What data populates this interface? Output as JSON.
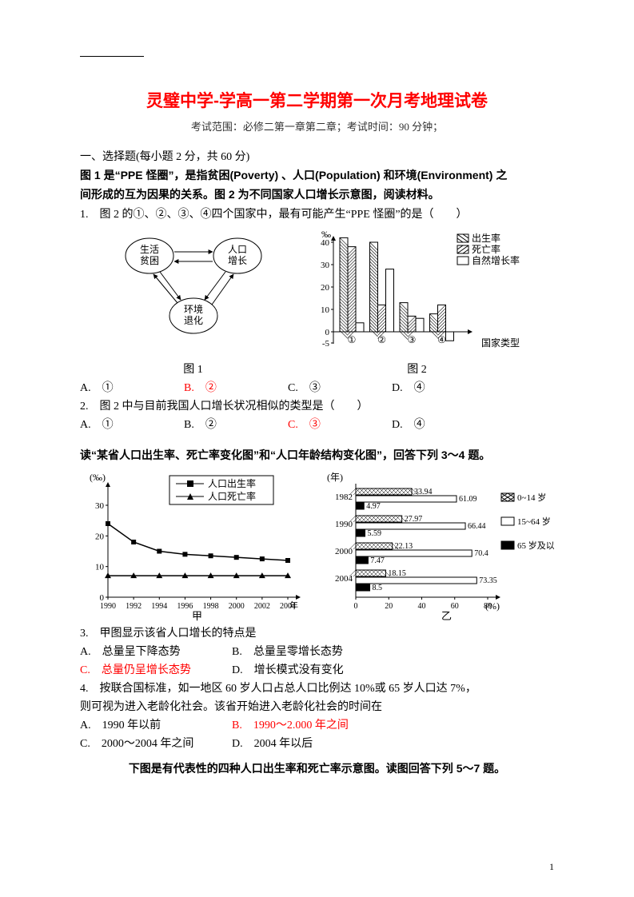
{
  "title": "灵璧中学-学高一第二学期第一次月考地理试卷",
  "subtitle": "考试范围：必修二第一章第二章；考试时间：90 分钟；",
  "section_header": "一、选择题(每小题 2 分，共 60 分)",
  "intro_line1": "图 1 是“PPE 怪圈”，是指贫困(Poverty) 、人口(Population) 和环境(Environment) 之",
  "intro_line2": "间形成的互为因果的关系。图 2 为不同国家人口增长示意图，阅读材料。",
  "q1_text": "1.　图 2 的①、②、③、④四个国家中，最有可能产生“PPE 怪圈”的是（　　）",
  "fig1_caption": "图 1",
  "fig2_caption": "图 2",
  "fig1": {
    "node1": "生活\n贫困",
    "node2": "人口\n增长",
    "node3": "环境\n退化"
  },
  "fig2": {
    "ylabel": "‰",
    "ymax": 45,
    "ymin": -5,
    "ticks": [
      40,
      30,
      20,
      10,
      0,
      -5
    ],
    "ytick_step": 10,
    "categories": [
      "①",
      "②",
      "③",
      "④"
    ],
    "xlabel": "国家类型",
    "legend": [
      "出生率",
      "死亡率",
      "自然增长率"
    ],
    "birth": [
      42,
      40,
      13,
      8
    ],
    "death": [
      38,
      12,
      7,
      12
    ],
    "natural": [
      4,
      28,
      6,
      -4
    ],
    "colors": {
      "birth_fill": "#ffffff",
      "birth_hatch": "#000000",
      "death_fill": "#ffffff",
      "death_hatch": "#000000",
      "natural_fill": "#ffffff"
    },
    "bar_width": 0.25,
    "background_color": "#ffffff",
    "axis_color": "#000000"
  },
  "q1_opts": {
    "A": "A.　①",
    "B": "B.　②",
    "C": "C.　③",
    "D": "D.　④",
    "answer": "B"
  },
  "q2_text": "2.　图 2 中与目前我国人口增长状况相似的类型是（　　）",
  "q2_opts": {
    "A": "A.　①",
    "B": "B.　②",
    "C": "C.　③",
    "D": "D.　④",
    "answer": "C"
  },
  "read_intro": "读“某省人口出生率、死亡率变化图”和“人口年龄结构变化图”，回答下列 3～4 题。",
  "fig3": {
    "ylabel": "(‰)",
    "xlabel_suffix": "年",
    "sublabel": "甲",
    "yticks": [
      0,
      10,
      20,
      30
    ],
    "ymax": 30,
    "years": [
      1990,
      1992,
      1994,
      1996,
      1998,
      2000,
      2002,
      2004
    ],
    "birth_series": [
      24,
      18,
      15,
      14,
      13.5,
      13,
      12.5,
      12
    ],
    "death_series": [
      7,
      7,
      7,
      7,
      7,
      7,
      7,
      7
    ],
    "legend": [
      "人口出生率",
      "人口死亡率"
    ],
    "birth_marker": "square",
    "death_marker": "triangle",
    "colors": {
      "line": "#000000",
      "marker": "#000000",
      "background": "#ffffff"
    }
  },
  "fig4": {
    "xlabel": "(%)",
    "sublabel": "乙",
    "ylabel": "(年)",
    "years": [
      1982,
      1990,
      2000,
      2004
    ],
    "legend": [
      "0~14 岁",
      "15~64 岁",
      "65 岁及以上"
    ],
    "data": {
      "1982": {
        "g0": 33.94,
        "g1": 61.09,
        "g2": 4.97
      },
      "1990": {
        "g0": 27.97,
        "g1": 66.44,
        "g2": 5.59
      },
      "2000": {
        "g0": 22.13,
        "g1": 70.4,
        "g2": 7.47
      },
      "2004": {
        "g0": 18.15,
        "g1": 73.35,
        "g2": 8.5
      }
    },
    "xmax": 80,
    "xticks": [
      0,
      20,
      40,
      60,
      80
    ],
    "colors": {
      "g0_hatch": "#000000",
      "g1_fill": "#ffffff",
      "g2_fill": "#000000",
      "axis": "#000000"
    }
  },
  "q3_text": "3.　甲图显示该省人口增长的特点是",
  "q3_opts": {
    "A": "A.　总量呈下降态势",
    "B": "B.　总量呈零增长态势",
    "C": "C.　总量仍呈增长态势",
    "D": "D.　增长模式没有变化",
    "answer": "C"
  },
  "q4_line1": "4.　按联合国标准，如一地区 60 岁人口占总人口比例达 10%或 65 岁人口达 7%，",
  "q4_line2": "则可视为进入老龄化社会。该省开始进入老龄化社会的时间在",
  "q4_opts": {
    "A": "A.　1990 年以前",
    "B": "B.　1990～2.000 年之间",
    "C": "C.　2000～2004 年之间",
    "D": "D.　2004 年以后",
    "answer": "B"
  },
  "fig5_intro": "下图是有代表性的四种人口出生率和死亡率示意图。读图回答下列 5～7 题。",
  "pagenum": "1"
}
